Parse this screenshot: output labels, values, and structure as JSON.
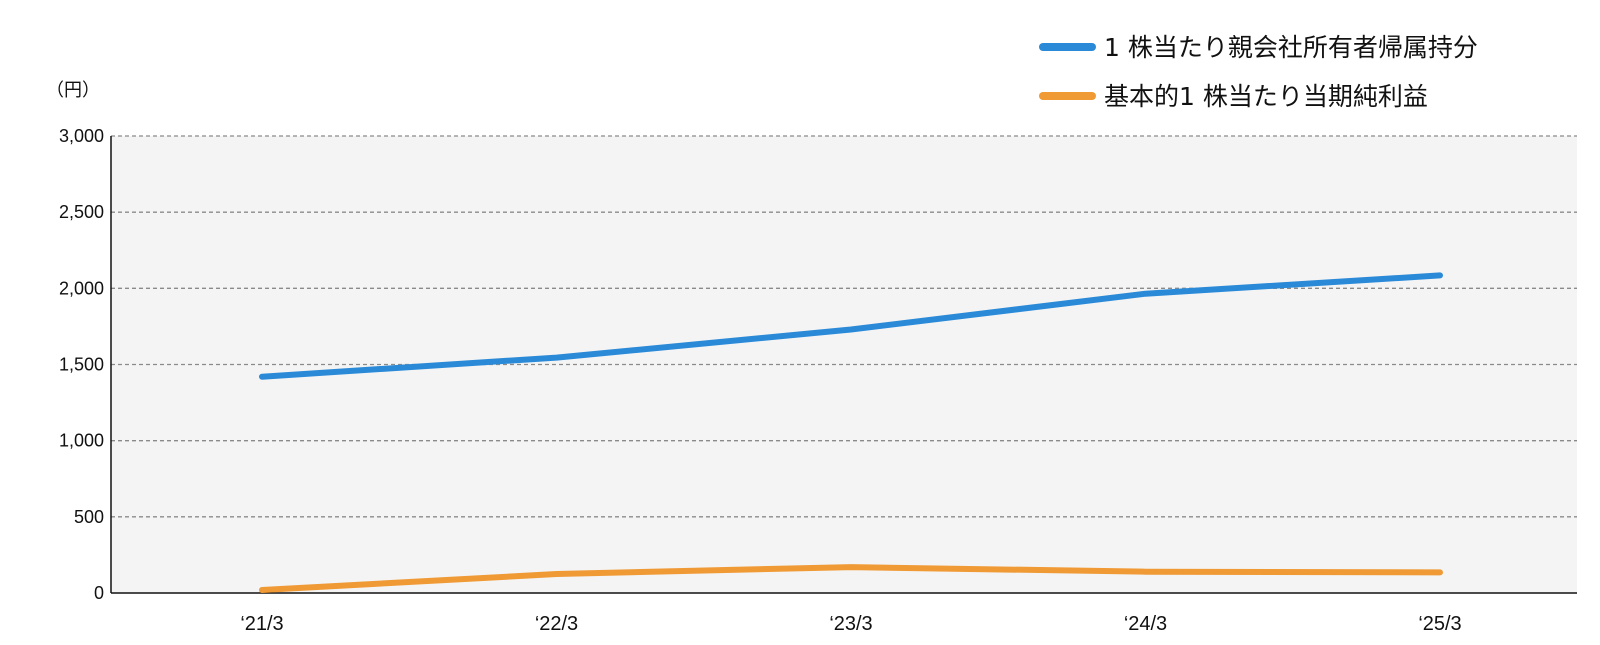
{
  "chart_data": {
    "type": "line",
    "unit_label": "（円）",
    "categories": [
      "‘21/3",
      "‘22/3",
      "‘23/3",
      "‘24/3",
      "‘25/3"
    ],
    "y_ticks": [
      "0",
      "500",
      "1,000",
      "1,500",
      "2,000",
      "2,500",
      "3,000"
    ],
    "ylim": [
      0,
      3000
    ],
    "grid": true,
    "legend_position": "top-right",
    "series": [
      {
        "name": "1 株当たり親会社所有者帰属持分",
        "color": "#2b8ad8",
        "values": [
          1420,
          1545,
          1730,
          1965,
          2085
        ]
      },
      {
        "name": "基本的1 株当たり当期純利益",
        "color": "#f09a36",
        "values": [
          20,
          125,
          170,
          140,
          135
        ]
      }
    ],
    "plot_background": "#f4f4f4",
    "grid_color": "#8a8a8a"
  }
}
